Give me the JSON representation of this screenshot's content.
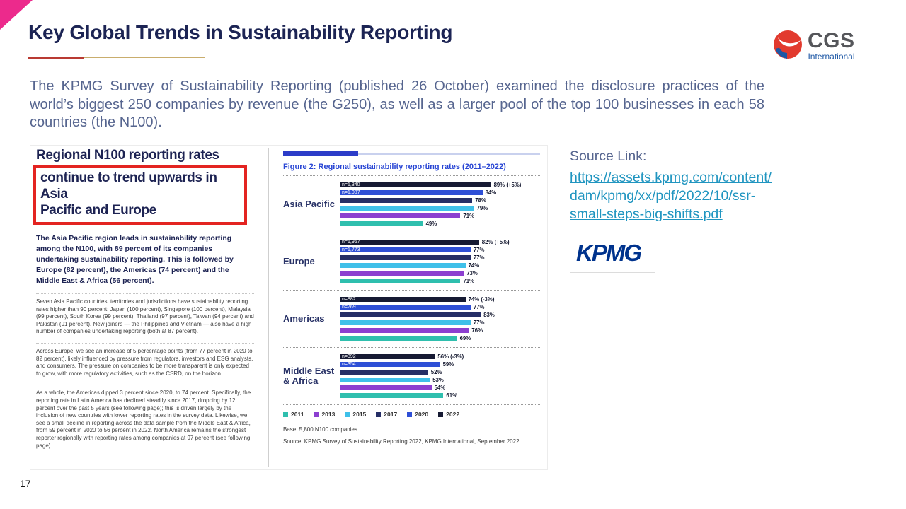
{
  "slide": {
    "title": "Key Global Trends in Sustainability Reporting",
    "page_number": "17",
    "intro": "The KPMG Survey of Sustainability Reporting (published 26 October) examined the disclosure practices of the world’s biggest 250 companies by revenue (the G250), as well as a larger pool of the top 100 businesses in each 58 countries (the N100)."
  },
  "logo": {
    "name": "CGS",
    "subtitle": "International"
  },
  "source": {
    "label": "Source Link:",
    "link_lines": [
      "https://assets.kpmg.com/content/",
      "dam/kpmg/xx/pdf/2022/10/ssr-",
      "small-steps-big-shifts.pdf"
    ],
    "kpmg_logo": "KPMG"
  },
  "report": {
    "heading_line1": "Regional N100 reporting rates",
    "heading_line2": "continue to trend upwards in Asia",
    "heading_line3": "Pacific and Europe",
    "lead": "The Asia Pacific region leads in sustainability reporting among the N100, with 89 percent of its companies undertaking sustainability reporting. This is followed by Europe (82 percent), the Americas (74 percent) and the Middle East & Africa (56 percent).",
    "para1": "Seven Asia Pacific countries, territories and jurisdictions have sustainability reporting rates higher than 90 percent: Japan (100 percent), Singapore (100 percent), Malaysia (99 percent), South Korea (99 percent), Thailand (97 percent), Taiwan (94 percent) and Pakistan (91 percent). New joiners — the Philippines and Vietnam — also have a high number of companies undertaking reporting (both at 87 percent).",
    "para2": "Across Europe, we see an increase of 5 percentage points (from 77 percent in 2020 to 82 percent), likely influenced by pressure from regulators, investors and ESG analysts, and consumers. The pressure on companies to be more transparent is only expected to grow, with more regulatory activities, such as the CSRD, on the horizon.",
    "para3": "As a whole, the Americas dipped 3 percent since 2020, to 74 percent. Specifically, the reporting rate in Latin America has declined steadily since 2017, dropping by 12 percent over the past 5 years (see following page); this is driven largely by the inclusion of new countries with lower reporting rates in the survey data. Likewise, we see a small decline in reporting across the data sample from the Middle East & Africa, from 59 percent in 2020 to 56 percent in 2022. North America remains the strongest reporter regionally with reporting rates among companies at 97 percent (see following page)."
  },
  "chart_data": {
    "type": "bar",
    "orientation": "horizontal",
    "title": "Figure 2: Regional sustainability reporting rates (2011–2022)",
    "xlabel": "",
    "ylabel": "",
    "xlim": [
      0,
      100
    ],
    "unit": "%",
    "bar_order_top_to_bottom": [
      "2022",
      "2020",
      "2017",
      "2015",
      "2013",
      "2011"
    ],
    "legend": [
      {
        "year": "2011",
        "color": "#2fbfae"
      },
      {
        "year": "2013",
        "color": "#8c3fd0"
      },
      {
        "year": "2015",
        "color": "#3fc0e9"
      },
      {
        "year": "2017",
        "color": "#252e66"
      },
      {
        "year": "2020",
        "color": "#2e4fd6"
      },
      {
        "year": "2022",
        "color": "#161a33"
      }
    ],
    "groups": [
      {
        "region": "Asia Pacific",
        "bars": [
          {
            "year": "2022",
            "value": 89,
            "label": "89% (+5%)",
            "n": "n=1,340"
          },
          {
            "year": "2020",
            "value": 84,
            "label": "84%",
            "n": "n=1,087"
          },
          {
            "year": "2017",
            "value": 78,
            "label": "78%"
          },
          {
            "year": "2015",
            "value": 79,
            "label": "79%"
          },
          {
            "year": "2013",
            "value": 71,
            "label": "71%"
          },
          {
            "year": "2011",
            "value": 49,
            "label": "49%"
          }
        ]
      },
      {
        "region": "Europe",
        "bars": [
          {
            "year": "2022",
            "value": 82,
            "label": "82% (+5%)",
            "n": "n=1,967"
          },
          {
            "year": "2020",
            "value": 77,
            "label": "77%",
            "n": "n=1,773"
          },
          {
            "year": "2017",
            "value": 77,
            "label": "77%"
          },
          {
            "year": "2015",
            "value": 74,
            "label": "74%"
          },
          {
            "year": "2013",
            "value": 73,
            "label": "73%"
          },
          {
            "year": "2011",
            "value": 71,
            "label": "71%"
          }
        ]
      },
      {
        "region": "Americas",
        "bars": [
          {
            "year": "2022",
            "value": 74,
            "label": "74% (-3%)",
            "n": "n=882"
          },
          {
            "year": "2020",
            "value": 77,
            "label": "77%",
            "n": "n=769"
          },
          {
            "year": "2017",
            "value": 83,
            "label": "83%"
          },
          {
            "year": "2015",
            "value": 77,
            "label": "77%"
          },
          {
            "year": "2013",
            "value": 76,
            "label": "76%"
          },
          {
            "year": "2011",
            "value": 69,
            "label": "69%"
          }
        ]
      },
      {
        "region": "Middle East\n& Africa",
        "bars": [
          {
            "year": "2022",
            "value": 56,
            "label": "56% (-3%)",
            "n": "n=392"
          },
          {
            "year": "2020",
            "value": 59,
            "label": "59%",
            "n": "n=354"
          },
          {
            "year": "2017",
            "value": 52,
            "label": "52%"
          },
          {
            "year": "2015",
            "value": 53,
            "label": "53%"
          },
          {
            "year": "2013",
            "value": 54,
            "label": "54%"
          },
          {
            "year": "2011",
            "value": 61,
            "label": "61%"
          }
        ]
      }
    ],
    "base_note": "Base: 5,800 N100 companies",
    "source_note": "Source: KPMG Survey of Sustainability Reporting 2022, KPMG International, September 2022"
  }
}
